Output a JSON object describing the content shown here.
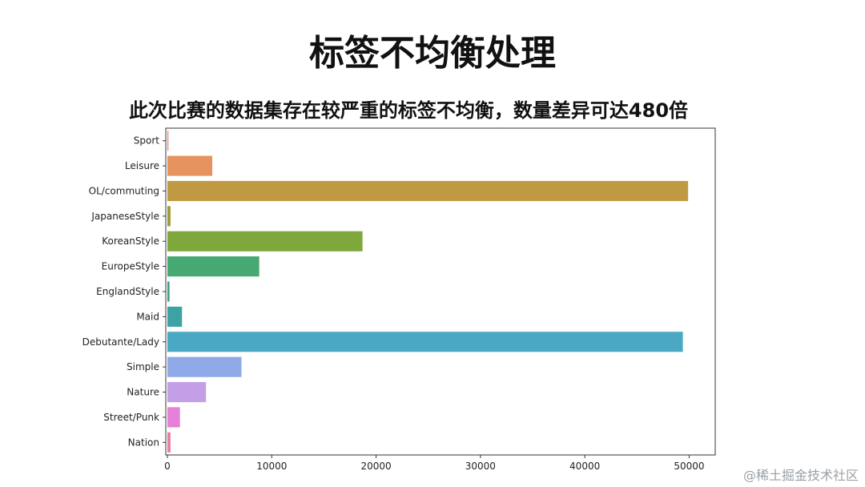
{
  "slide": {
    "title": "标签不均衡处理"
  },
  "watermark": "@稀土掘金技术社区",
  "chart_data": {
    "type": "bar",
    "orientation": "horizontal",
    "title": "此次比赛的数据集存在较严重的标签不均衡，数量差异可达480倍",
    "xlabel": "",
    "ylabel": "",
    "xlim": [
      0,
      52500
    ],
    "xticks": [
      0,
      10000,
      20000,
      30000,
      40000,
      50000
    ],
    "xtick_labels": [
      "0",
      "10000",
      "20000",
      "30000",
      "40000",
      "50000"
    ],
    "grid": false,
    "legend": "none",
    "categories": [
      "Sport",
      "Leisure",
      "OL/commuting",
      "JapaneseStyle",
      "KoreanStyle",
      "EuropeStyle",
      "EnglandStyle",
      "Maid",
      "Debutante/Lady",
      "Simple",
      "Nature",
      "Street/Punk",
      "Nation"
    ],
    "values": [
      100,
      4300,
      49900,
      300,
      18700,
      8800,
      200,
      1400,
      49400,
      7100,
      3700,
      1200,
      300
    ],
    "colors": [
      "#e8897f",
      "#e6935f",
      "#c09a43",
      "#9d9c39",
      "#7ea83c",
      "#45a971",
      "#3b9f88",
      "#3da2a3",
      "#4aa8c4",
      "#8fa9e8",
      "#c29fe6",
      "#e57fd8",
      "#e77fa8"
    ]
  }
}
